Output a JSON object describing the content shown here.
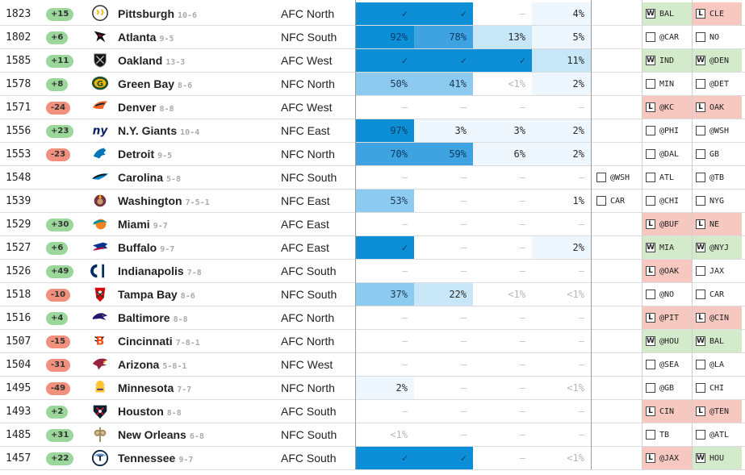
{
  "colors": {
    "positive_badge": "#9bd69b",
    "negative_badge": "#f0907d",
    "win_bg": "#d4ebcb",
    "loss_bg": "#f6c8c0",
    "prob_scale": [
      "#0d8fd8",
      "#3ea3e0",
      "#8ccaf0",
      "#c7e6f8",
      "#eef7fd"
    ]
  },
  "teams": [
    {
      "elo": "1823",
      "change": "+15",
      "icon": "steelers-logo-icon",
      "name": "Pittsburgh",
      "record": "10-6",
      "division": "AFC North",
      "probs": [
        "✓",
        "✓",
        "–",
        "4%"
      ],
      "prob_levels": [
        1,
        1,
        0,
        0.04
      ],
      "game_a": null,
      "game_b": {
        "box": "W",
        "opp": "BAL",
        "result": "win"
      },
      "game_c": {
        "box": "L",
        "opp": "CLE",
        "result": "loss"
      }
    },
    {
      "elo": "1802",
      "change": "+6",
      "icon": "falcons-logo-icon",
      "name": "Atlanta",
      "record": "9-5",
      "division": "NFC South",
      "probs": [
        "92%",
        "78%",
        "13%",
        "5%"
      ],
      "prob_levels": [
        0.92,
        0.78,
        0.13,
        0.05
      ],
      "game_a": null,
      "game_b": {
        "box": "",
        "opp": "@CAR",
        "result": "none"
      },
      "game_c": {
        "box": "",
        "opp": "NO",
        "result": "none"
      }
    },
    {
      "elo": "1585",
      "change": "+11",
      "icon": "raiders-logo-icon",
      "name": "Oakland",
      "record": "13-3",
      "division": "AFC West",
      "probs": [
        "✓",
        "✓",
        "✓",
        "11%"
      ],
      "prob_levels": [
        1,
        1,
        1,
        0.11
      ],
      "game_a": null,
      "game_b": {
        "box": "W",
        "opp": "IND",
        "result": "win"
      },
      "game_c": {
        "box": "W",
        "opp": "@DEN",
        "result": "win"
      }
    },
    {
      "elo": "1578",
      "change": "+8",
      "icon": "packers-logo-icon",
      "name": "Green Bay",
      "record": "8-6",
      "division": "NFC North",
      "probs": [
        "50%",
        "41%",
        "<1%",
        "2%"
      ],
      "prob_levels": [
        0.5,
        0.41,
        0.005,
        0.02
      ],
      "game_a": null,
      "game_b": {
        "box": "",
        "opp": "MIN",
        "result": "none"
      },
      "game_c": {
        "box": "",
        "opp": "@DET",
        "result": "none"
      }
    },
    {
      "elo": "1571",
      "change": "-24",
      "icon": "broncos-logo-icon",
      "name": "Denver",
      "record": "8-8",
      "division": "AFC West",
      "probs": [
        "–",
        "–",
        "–",
        "–"
      ],
      "prob_levels": [
        0,
        0,
        0,
        0
      ],
      "game_a": null,
      "game_b": {
        "box": "L",
        "opp": "@KC",
        "result": "loss"
      },
      "game_c": {
        "box": "L",
        "opp": "OAK",
        "result": "loss"
      }
    },
    {
      "elo": "1556",
      "change": "+23",
      "icon": "giants-logo-icon",
      "name": "N.Y. Giants",
      "record": "10-4",
      "division": "NFC East",
      "probs": [
        "97%",
        "3%",
        "3%",
        "2%"
      ],
      "prob_levels": [
        0.97,
        0.03,
        0.03,
        0.02
      ],
      "game_a": null,
      "game_b": {
        "box": "",
        "opp": "@PHI",
        "result": "none"
      },
      "game_c": {
        "box": "",
        "opp": "@WSH",
        "result": "none"
      }
    },
    {
      "elo": "1553",
      "change": "-23",
      "icon": "lions-logo-icon",
      "name": "Detroit",
      "record": "9-5",
      "division": "NFC North",
      "probs": [
        "70%",
        "59%",
        "6%",
        "2%"
      ],
      "prob_levels": [
        0.7,
        0.59,
        0.06,
        0.02
      ],
      "game_a": null,
      "game_b": {
        "box": "",
        "opp": "@DAL",
        "result": "none"
      },
      "game_c": {
        "box": "",
        "opp": "GB",
        "result": "none"
      }
    },
    {
      "elo": "1548",
      "change": "",
      "icon": "panthers-logo-icon",
      "name": "Carolina",
      "record": "5-8",
      "division": "NFC South",
      "probs": [
        "–",
        "–",
        "–",
        "–"
      ],
      "prob_levels": [
        0,
        0,
        0,
        0
      ],
      "game_a": {
        "box": "",
        "opp": "@WSH",
        "result": "none"
      },
      "game_b": {
        "box": "",
        "opp": "ATL",
        "result": "none"
      },
      "game_c": {
        "box": "",
        "opp": "@TB",
        "result": "none"
      }
    },
    {
      "elo": "1539",
      "change": "",
      "icon": "redskins-logo-icon",
      "name": "Washington",
      "record": "7-5-1",
      "division": "NFC East",
      "probs": [
        "53%",
        "–",
        "–",
        "1%"
      ],
      "prob_levels": [
        0.53,
        0,
        0,
        0.01
      ],
      "game_a": {
        "box": "",
        "opp": "CAR",
        "result": "none"
      },
      "game_b": {
        "box": "",
        "opp": "@CHI",
        "result": "none"
      },
      "game_c": {
        "box": "",
        "opp": "NYG",
        "result": "none"
      }
    },
    {
      "elo": "1529",
      "change": "+30",
      "icon": "dolphins-logo-icon",
      "name": "Miami",
      "record": "9-7",
      "division": "AFC East",
      "probs": [
        "–",
        "–",
        "–",
        "–"
      ],
      "prob_levels": [
        0,
        0,
        0,
        0
      ],
      "game_a": null,
      "game_b": {
        "box": "L",
        "opp": "@BUF",
        "result": "loss"
      },
      "game_c": {
        "box": "L",
        "opp": "NE",
        "result": "loss"
      }
    },
    {
      "elo": "1527",
      "change": "+6",
      "icon": "bills-logo-icon",
      "name": "Buffalo",
      "record": "9-7",
      "division": "AFC East",
      "probs": [
        "✓",
        "–",
        "–",
        "2%"
      ],
      "prob_levels": [
        1,
        0,
        0,
        0.02
      ],
      "game_a": null,
      "game_b": {
        "box": "W",
        "opp": "MIA",
        "result": "win"
      },
      "game_c": {
        "box": "W",
        "opp": "@NYJ",
        "result": "win"
      }
    },
    {
      "elo": "1526",
      "change": "+49",
      "icon": "colts-logo-icon",
      "name": "Indianapolis",
      "record": "7-8",
      "division": "AFC South",
      "probs": [
        "–",
        "–",
        "–",
        "–"
      ],
      "prob_levels": [
        0,
        0,
        0,
        0
      ],
      "game_a": null,
      "game_b": {
        "box": "L",
        "opp": "@OAK",
        "result": "loss"
      },
      "game_c": {
        "box": "",
        "opp": "JAX",
        "result": "none"
      }
    },
    {
      "elo": "1518",
      "change": "-10",
      "icon": "buccaneers-logo-icon",
      "name": "Tampa Bay",
      "record": "8-6",
      "division": "NFC South",
      "probs": [
        "37%",
        "22%",
        "<1%",
        "<1%"
      ],
      "prob_levels": [
        0.37,
        0.22,
        0.005,
        0.005
      ],
      "game_a": null,
      "game_b": {
        "box": "",
        "opp": "@NO",
        "result": "none"
      },
      "game_c": {
        "box": "",
        "opp": "CAR",
        "result": "none"
      }
    },
    {
      "elo": "1516",
      "change": "+4",
      "icon": "ravens-logo-icon",
      "name": "Baltimore",
      "record": "8-8",
      "division": "AFC North",
      "probs": [
        "–",
        "–",
        "–",
        "–"
      ],
      "prob_levels": [
        0,
        0,
        0,
        0
      ],
      "game_a": null,
      "game_b": {
        "box": "L",
        "opp": "@PIT",
        "result": "loss"
      },
      "game_c": {
        "box": "L",
        "opp": "@CIN",
        "result": "loss"
      }
    },
    {
      "elo": "1507",
      "change": "-15",
      "icon": "bengals-logo-icon",
      "name": "Cincinnati",
      "record": "7-8-1",
      "division": "AFC North",
      "probs": [
        "–",
        "–",
        "–",
        "–"
      ],
      "prob_levels": [
        0,
        0,
        0,
        0
      ],
      "game_a": null,
      "game_b": {
        "box": "W",
        "opp": "@HOU",
        "result": "win"
      },
      "game_c": {
        "box": "W",
        "opp": "BAL",
        "result": "win"
      }
    },
    {
      "elo": "1504",
      "change": "-31",
      "icon": "cardinals-logo-icon",
      "name": "Arizona",
      "record": "5-8-1",
      "division": "NFC West",
      "probs": [
        "–",
        "–",
        "–",
        "–"
      ],
      "prob_levels": [
        0,
        0,
        0,
        0
      ],
      "game_a": null,
      "game_b": {
        "box": "",
        "opp": "@SEA",
        "result": "none"
      },
      "game_c": {
        "box": "",
        "opp": "@LA",
        "result": "none"
      }
    },
    {
      "elo": "1495",
      "change": "-49",
      "icon": "vikings-logo-icon",
      "name": "Minnesota",
      "record": "7-7",
      "division": "NFC North",
      "probs": [
        "2%",
        "–",
        "–",
        "<1%"
      ],
      "prob_levels": [
        0.02,
        0,
        0,
        0.005
      ],
      "game_a": null,
      "game_b": {
        "box": "",
        "opp": "@GB",
        "result": "none"
      },
      "game_c": {
        "box": "",
        "opp": "CHI",
        "result": "none"
      }
    },
    {
      "elo": "1493",
      "change": "+2",
      "icon": "texans-logo-icon",
      "name": "Houston",
      "record": "8-8",
      "division": "AFC South",
      "probs": [
        "–",
        "–",
        "–",
        "–"
      ],
      "prob_levels": [
        0,
        0,
        0,
        0
      ],
      "game_a": null,
      "game_b": {
        "box": "L",
        "opp": "CIN",
        "result": "loss"
      },
      "game_c": {
        "box": "L",
        "opp": "@TEN",
        "result": "loss"
      }
    },
    {
      "elo": "1485",
      "change": "+31",
      "icon": "saints-logo-icon",
      "name": "New Orleans",
      "record": "6-8",
      "division": "NFC South",
      "probs": [
        "<1%",
        "–",
        "–",
        "–"
      ],
      "prob_levels": [
        0.005,
        0,
        0,
        0
      ],
      "game_a": null,
      "game_b": {
        "box": "",
        "opp": "TB",
        "result": "none"
      },
      "game_c": {
        "box": "",
        "opp": "@ATL",
        "result": "none"
      }
    },
    {
      "elo": "1457",
      "change": "+22",
      "icon": "titans-logo-icon",
      "name": "Tennessee",
      "record": "9-7",
      "division": "AFC South",
      "probs": [
        "✓",
        "✓",
        "–",
        "<1%"
      ],
      "prob_levels": [
        1,
        1,
        0,
        0.005
      ],
      "game_a": null,
      "game_b": {
        "box": "L",
        "opp": "@JAX",
        "result": "loss"
      },
      "game_c": {
        "box": "W",
        "opp": "HOU",
        "result": "win"
      }
    }
  ]
}
